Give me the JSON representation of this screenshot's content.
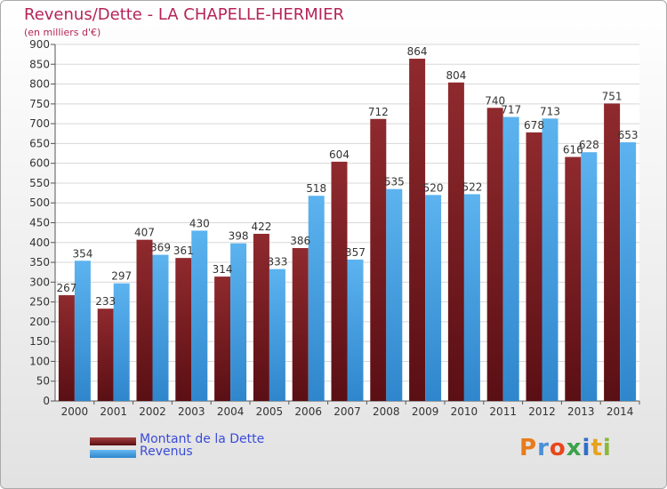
{
  "title": "Revenus/Dette - LA CHAPELLE-HERMIER",
  "subtitle": "(en milliers d'€)",
  "colors": {
    "dette": "#7a1a22",
    "dette_light": "#a54040",
    "revenus": "#3e9ae0",
    "revenus_light": "#66b8f0",
    "title": "#b52458",
    "legend_text": "#3a4bd8",
    "grid": "#d8d8d8"
  },
  "legend": [
    {
      "label": "Montant de la Dette",
      "color": "#7a1a22",
      "icon": "maroon-bar-swatch"
    },
    {
      "label": "Revenus",
      "color": "#3e9ae0",
      "icon": "blue-bar-swatch"
    }
  ],
  "logo": {
    "letters": [
      "P",
      "r",
      "o",
      "x",
      "i",
      "t",
      "i"
    ],
    "colors": [
      "#e87b1c",
      "#4a8fd8",
      "#e8461c",
      "#3aa34a",
      "#2f6fc8",
      "#e8a21c",
      "#8ab83a"
    ]
  },
  "chart_data": {
    "type": "bar",
    "categories": [
      "2000",
      "2001",
      "2002",
      "2003",
      "2004",
      "2005",
      "2006",
      "2007",
      "2008",
      "2009",
      "2010",
      "2011",
      "2012",
      "2013",
      "2014"
    ],
    "series": [
      {
        "name": "Montant de la Dette",
        "values": [
          267,
          233,
          407,
          361,
          314,
          422,
          386,
          604,
          712,
          864,
          804,
          740,
          678,
          616,
          751
        ]
      },
      {
        "name": "Revenus",
        "values": [
          354,
          297,
          369,
          430,
          398,
          333,
          518,
          357,
          535,
          520,
          522,
          717,
          713,
          628,
          653
        ]
      }
    ],
    "ylim": [
      0,
      900
    ],
    "yticks": [
      0,
      50,
      100,
      150,
      200,
      250,
      300,
      350,
      400,
      450,
      500,
      550,
      600,
      650,
      700,
      750,
      800,
      850,
      900
    ],
    "grid": true,
    "legend_position": "bottom-left"
  }
}
